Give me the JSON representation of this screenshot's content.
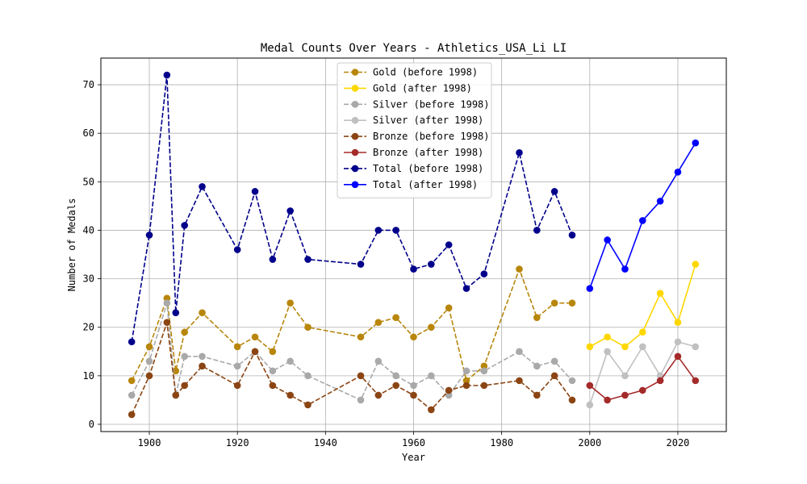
{
  "chart_data": {
    "type": "line",
    "title": "Medal Counts Over Years - Athletics_USA_Li LI",
    "xlabel": "Year",
    "ylabel": "Number of Medals",
    "xlim": [
      1889,
      2031
    ],
    "ylim": [
      -1.5,
      75.5
    ],
    "xticks": [
      1900,
      1920,
      1940,
      1960,
      1980,
      2000,
      2020
    ],
    "yticks": [
      0,
      10,
      20,
      30,
      40,
      50,
      60,
      70
    ],
    "grid": true,
    "legend_position": "upper center",
    "series": [
      {
        "name": "Gold (before 1998)",
        "color": "#B8860B",
        "dash": "dashed",
        "x": [
          1896,
          1900,
          1904,
          1906,
          1908,
          1912,
          1920,
          1924,
          1928,
          1932,
          1936,
          1948,
          1952,
          1956,
          1960,
          1964,
          1968,
          1972,
          1976,
          1984,
          1988,
          1992,
          1996
        ],
        "y": [
          9,
          16,
          26,
          11,
          19,
          23,
          16,
          18,
          15,
          25,
          20,
          18,
          21,
          22,
          18,
          20,
          24,
          9,
          12,
          32,
          22,
          25,
          25
        ]
      },
      {
        "name": "Gold (after 1998)",
        "color": "#FFD700",
        "dash": "solid",
        "x": [
          2000,
          2004,
          2008,
          2012,
          2016,
          2020,
          2024
        ],
        "y": [
          16,
          18,
          16,
          19,
          27,
          21,
          33
        ]
      },
      {
        "name": "Silver (before 1998)",
        "color": "#A9A9A9",
        "dash": "dashed",
        "x": [
          1896,
          1900,
          1904,
          1906,
          1908,
          1912,
          1920,
          1924,
          1928,
          1932,
          1936,
          1948,
          1952,
          1956,
          1960,
          1964,
          1968,
          1972,
          1976,
          1984,
          1988,
          1992,
          1996
        ],
        "y": [
          6,
          13,
          25,
          6,
          14,
          14,
          12,
          15,
          11,
          13,
          10,
          5,
          13,
          10,
          8,
          10,
          6,
          11,
          11,
          15,
          12,
          13,
          9
        ]
      },
      {
        "name": "Silver (after 1998)",
        "color": "#C0C0C0",
        "dash": "solid",
        "x": [
          2000,
          2004,
          2008,
          2012,
          2016,
          2020,
          2024
        ],
        "y": [
          4,
          15,
          10,
          16,
          10,
          17,
          16
        ]
      },
      {
        "name": "Bronze (before 1998)",
        "color": "#8B4513",
        "dash": "dashed",
        "x": [
          1896,
          1900,
          1904,
          1906,
          1908,
          1912,
          1920,
          1924,
          1928,
          1932,
          1936,
          1948,
          1952,
          1956,
          1960,
          1964,
          1968,
          1972,
          1976,
          1984,
          1988,
          1992,
          1996
        ],
        "y": [
          2,
          10,
          21,
          6,
          8,
          12,
          8,
          15,
          8,
          6,
          4,
          10,
          6,
          8,
          6,
          3,
          7,
          8,
          8,
          9,
          6,
          10,
          5
        ]
      },
      {
        "name": "Bronze (after 1998)",
        "color": "#A52A2A",
        "dash": "solid",
        "x": [
          2000,
          2004,
          2008,
          2012,
          2016,
          2020,
          2024
        ],
        "y": [
          8,
          5,
          6,
          7,
          9,
          14,
          9
        ]
      },
      {
        "name": "Total (before 1998)",
        "color": "#00008B",
        "dash": "dashed",
        "x": [
          1896,
          1900,
          1904,
          1906,
          1908,
          1912,
          1920,
          1924,
          1928,
          1932,
          1936,
          1948,
          1952,
          1956,
          1960,
          1964,
          1968,
          1972,
          1976,
          1984,
          1988,
          1992,
          1996
        ],
        "y": [
          17,
          39,
          72,
          23,
          41,
          49,
          36,
          48,
          34,
          44,
          34,
          33,
          40,
          40,
          32,
          33,
          37,
          28,
          31,
          56,
          40,
          48,
          39
        ]
      },
      {
        "name": "Total (after 1998)",
        "color": "#0000FF",
        "dash": "solid",
        "x": [
          2000,
          2004,
          2008,
          2012,
          2016,
          2020,
          2024
        ],
        "y": [
          28,
          38,
          32,
          42,
          46,
          52,
          58
        ]
      }
    ]
  }
}
